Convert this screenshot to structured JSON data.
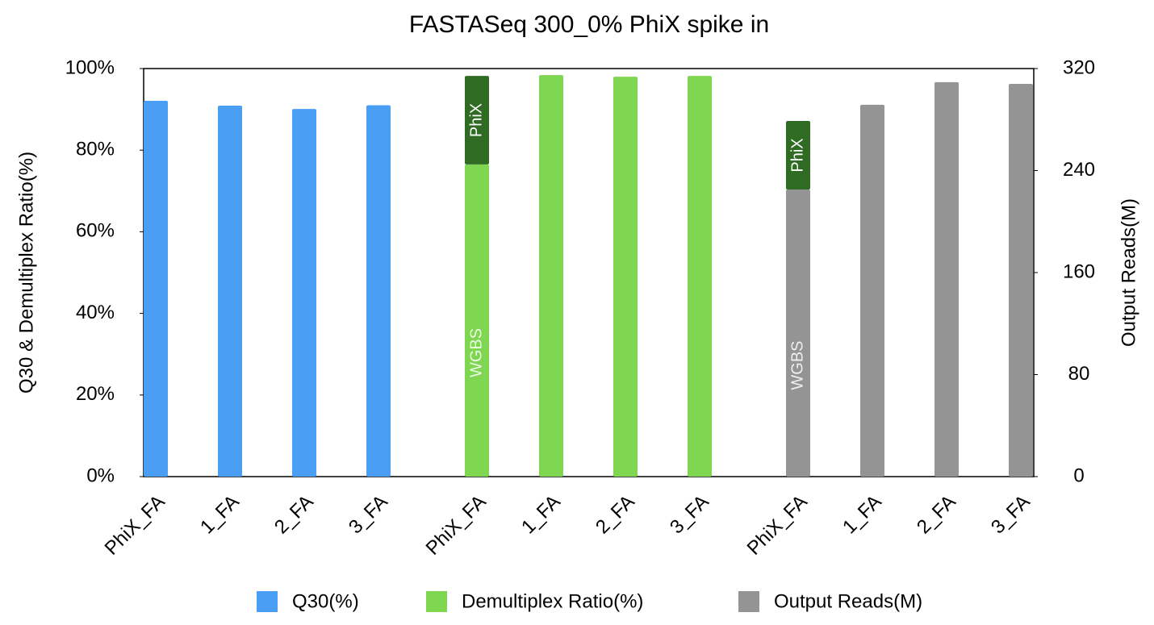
{
  "chart_data": {
    "type": "bar",
    "title": "FASTASeq 300_0% PhiX spike in",
    "ylabel": "Q30 & Demultiplex Ratio(%)",
    "y2label": "Output Reads(M)",
    "categories": [
      "PhiX_FA",
      "1_FA",
      "2_FA",
      "3_FA",
      "PhiX_FA",
      "1_FA",
      "2_FA",
      "3_FA",
      "PhiX_FA",
      "1_FA",
      "2_FA",
      "3_FA"
    ],
    "series": [
      {
        "name": "Q30(%)",
        "color": "#4a9ff5",
        "axis": "y",
        "values": [
          92.1,
          90.9,
          90.1,
          91,
          null,
          null,
          null,
          null,
          null,
          null,
          null,
          null
        ]
      },
      {
        "name": "Demultiplex Ratio(%)",
        "color": "#7ed651",
        "axis": "y",
        "values": [
          null,
          null,
          null,
          null,
          76.5,
          98.4,
          98,
          98.2,
          null,
          null,
          null,
          null
        ],
        "phix_values": [
          null,
          null,
          null,
          null,
          21.7,
          null,
          null,
          null,
          null,
          null,
          null,
          null
        ]
      },
      {
        "name": "Output Reads(M)",
        "color": "#949494",
        "axis": "y2",
        "values": [
          null,
          null,
          null,
          null,
          null,
          null,
          null,
          null,
          225.1,
          291.6,
          309.3,
          308
        ],
        "phix_values": [
          null,
          null,
          null,
          null,
          null,
          null,
          null,
          null,
          53.8,
          null,
          null,
          null
        ]
      }
    ],
    "segment_labels": [
      "WGBS",
      "PhiX"
    ],
    "segment_color": "#2f6b23",
    "ylim": [
      0,
      100
    ],
    "yticks": [
      {
        "value": 0,
        "label": "0%"
      },
      {
        "value": 20,
        "label": "20%"
      },
      {
        "value": 40,
        "label": "40%"
      },
      {
        "value": 60,
        "label": "60%"
      },
      {
        "value": 80,
        "label": "80%"
      },
      {
        "value": 100,
        "label": "100%"
      }
    ],
    "y2lim": [
      0,
      320
    ],
    "y2ticks": [
      0,
      80,
      160,
      240,
      320
    ],
    "grid": false,
    "legend": "bottom"
  }
}
